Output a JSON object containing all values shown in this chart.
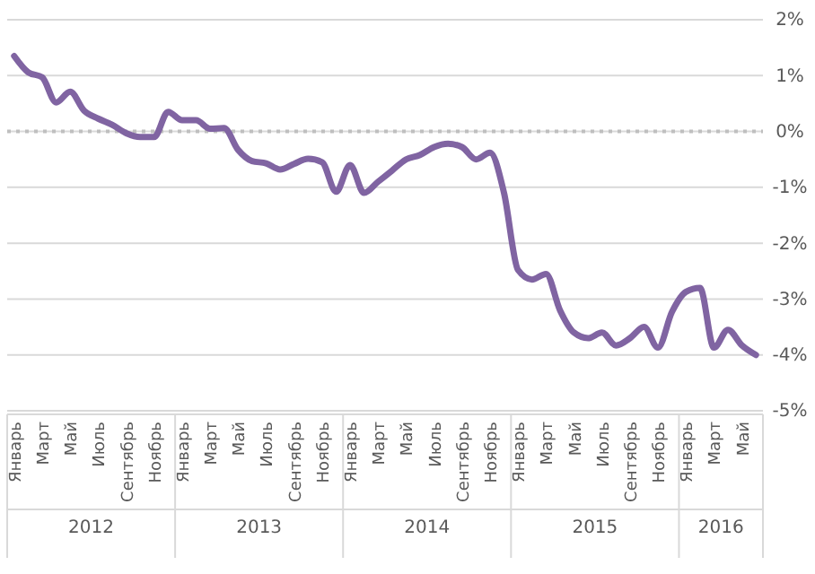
{
  "chart_data": {
    "type": "line",
    "categories": [
      "Январь",
      null,
      "Март",
      null,
      "Май",
      null,
      "Июль",
      null,
      "Сентябрь",
      null,
      "Ноябрь",
      null,
      "Январь",
      null,
      "Март",
      null,
      "Май",
      null,
      "Июль",
      null,
      "Сентябрь",
      null,
      "Ноябрь",
      null,
      "Январь",
      null,
      "Март",
      null,
      "Май",
      null,
      "Июль",
      null,
      "Сентябрь",
      null,
      "Ноябрь",
      null,
      "Январь",
      null,
      "Март",
      null,
      "Май",
      null,
      "Июль",
      null,
      "Сентябрь",
      null,
      "Ноябрь",
      null,
      "Январь",
      null,
      "Март",
      null,
      "Май",
      null
    ],
    "series": [
      {
        "color": "#8064a2",
        "values": [
          1.35,
          1.06,
          0.97,
          0.52,
          0.71,
          0.37,
          0.23,
          0.12,
          -0.03,
          -0.1,
          -0.1,
          0.35,
          0.2,
          0.2,
          0.05,
          0.06,
          -0.33,
          -0.53,
          -0.57,
          -0.68,
          -0.58,
          -0.49,
          -0.55,
          -1.08,
          -0.6,
          -1.1,
          -0.9,
          -0.7,
          -0.5,
          -0.42,
          -0.28,
          -0.22,
          -0.28,
          -0.5,
          -0.38,
          -1.1,
          -2.48,
          -2.65,
          -2.55,
          -3.2,
          -3.6,
          -3.7,
          -3.6,
          -3.83,
          -3.7,
          -3.5,
          -3.87,
          -3.23,
          -2.87,
          -2.8,
          -3.87,
          -3.55,
          -3.83,
          -4.0
        ]
      }
    ],
    "ylim": [
      -5,
      2
    ],
    "yticks": [
      {
        "value": 2,
        "label": "2%"
      },
      {
        "value": 1,
        "label": "1%"
      },
      {
        "value": 0,
        "label": "0%"
      },
      {
        "value": -1,
        "label": "-1%"
      },
      {
        "value": -2,
        "label": "-2%"
      },
      {
        "value": -3,
        "label": "-3%"
      },
      {
        "value": -4,
        "label": "-4%"
      },
      {
        "value": -5,
        "label": "-5%"
      }
    ],
    "grid": "y",
    "marker": "none",
    "line_style": "solid",
    "ref_lines": [
      {
        "axis": "y",
        "value": 0,
        "color": "#bfbfbf",
        "line_style": "dotted"
      }
    ],
    "annotations": [
      "2012",
      "2013",
      "2014",
      "2015",
      "2016"
    ]
  }
}
